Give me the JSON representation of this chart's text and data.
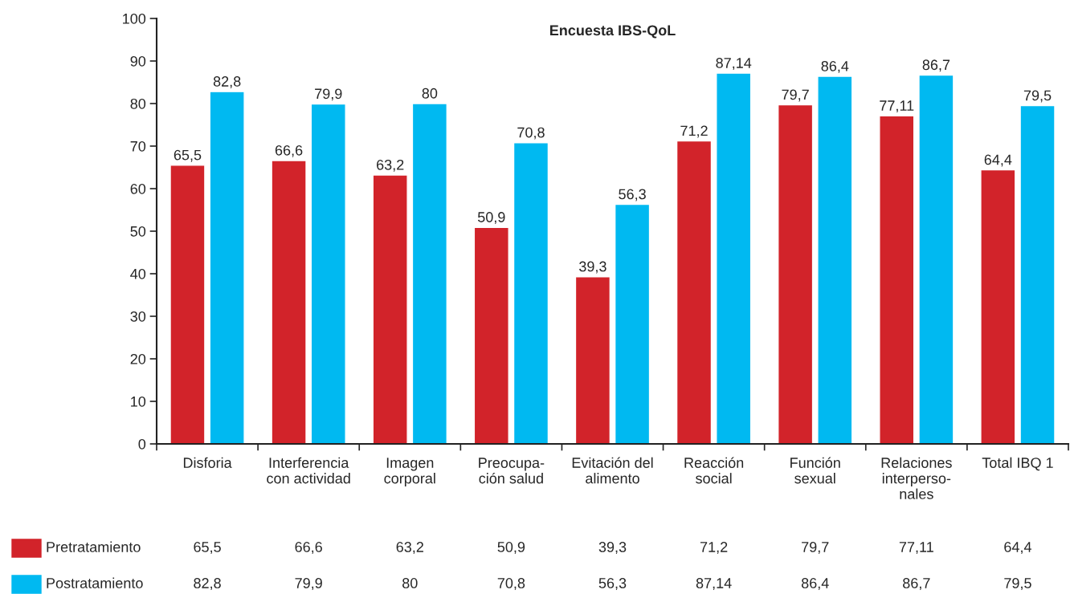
{
  "chart_data": {
    "type": "bar",
    "title": "Encuesta IBS-QoL",
    "categories": [
      "Disforia",
      "Interferencia\ncon actividad",
      "Imagen\ncorporal",
      "Preocupa-\nción salud",
      "Evitación del\nalimento",
      "Reacción\nsocial",
      "Función\nsexual",
      "Relaciones\ninterperso-\nnales",
      "Total IBQ 1"
    ],
    "series": [
      {
        "name": "Pretratamiento",
        "color": "#d2232a",
        "values": [
          65.5,
          66.6,
          63.2,
          50.9,
          39.3,
          71.2,
          79.7,
          77.11,
          64.4
        ],
        "value_labels": [
          "65,5",
          "66,6",
          "63,2",
          "50,9",
          "39,3",
          "71,2",
          "79,7",
          "77,11",
          "64,4"
        ]
      },
      {
        "name": "Postratamiento",
        "color": "#00b9f1",
        "values": [
          82.8,
          79.9,
          80,
          70.8,
          56.3,
          87.14,
          86.4,
          86.7,
          79.5
        ],
        "value_labels": [
          "82,8",
          "79,9",
          "80",
          "70,8",
          "56,3",
          "87,14",
          "86,4",
          "86,7",
          "79,5"
        ]
      }
    ],
    "ylim": [
      0,
      100
    ],
    "yticks": [
      0,
      10,
      20,
      30,
      40,
      50,
      60,
      70,
      80,
      90,
      100
    ],
    "grid": false,
    "legend": "bottom"
  }
}
